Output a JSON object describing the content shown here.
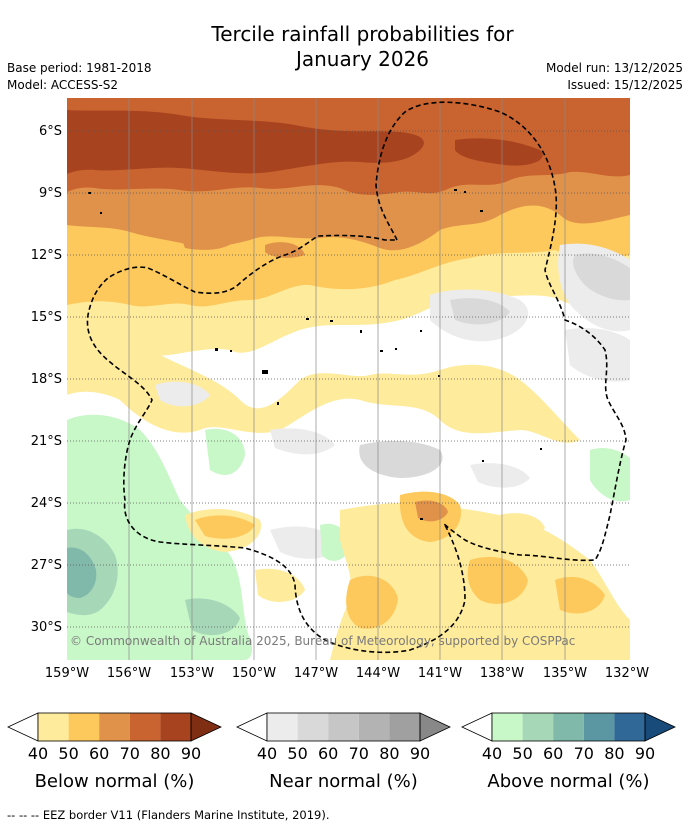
{
  "title": {
    "line1": "Tercile rainfall probabilities for",
    "line2": "January 2026"
  },
  "meta": {
    "base_period": "Base period: 1981-2018",
    "model": "Model: ACCESS-S2",
    "model_run": "Model run: 13/12/2025",
    "issued": "Issued: 15/12/2025"
  },
  "map": {
    "lat_labels": [
      "6°S",
      "9°S",
      "12°S",
      "15°S",
      "18°S",
      "21°S",
      "24°S",
      "27°S",
      "30°S"
    ],
    "lon_labels": [
      "159°W",
      "156°W",
      "153°W",
      "150°W",
      "147°W",
      "144°W",
      "141°W",
      "138°W",
      "135°W",
      "132°W"
    ],
    "credit": "© Commonwealth of Australia 2025, Bureau of Meteorology, supported by COSPPac"
  },
  "legends": [
    {
      "title": "Below normal (%)",
      "values": [
        "40",
        "50",
        "60",
        "70",
        "80",
        "90"
      ],
      "colors": [
        "#ffeb9c",
        "#fdc95c",
        "#e0924a",
        "#c9632f",
        "#a8431f",
        "#7f2e14"
      ]
    },
    {
      "title": "Near normal (%)",
      "values": [
        "40",
        "50",
        "60",
        "70",
        "80",
        "90"
      ],
      "colors": [
        "#ececec",
        "#d9d9d9",
        "#c6c6c6",
        "#b3b3b3",
        "#a0a0a0",
        "#888888"
      ]
    },
    {
      "title": "Above normal (%)",
      "values": [
        "40",
        "50",
        "60",
        "70",
        "80",
        "90"
      ],
      "colors": [
        "#c8f7c8",
        "#a6d8b8",
        "#80b8aa",
        "#5b97a2",
        "#306898",
        "#184a7a"
      ]
    }
  ],
  "footer": "-- -- -- EEZ border V11 (Flanders Marine Institute, 2019).",
  "palette": {
    "bn40": "#ffeb9c",
    "bn50": "#fdc95c",
    "bn60": "#e0924a",
    "bn70": "#c9632f",
    "bn80": "#a8431f",
    "nn40": "#ececec",
    "nn50": "#d9d9d9",
    "nn60": "#c6c6c6",
    "an40": "#c8f7c8",
    "an50": "#a6d8b8",
    "an60": "#80b8aa",
    "an70": "#5b97a2"
  }
}
